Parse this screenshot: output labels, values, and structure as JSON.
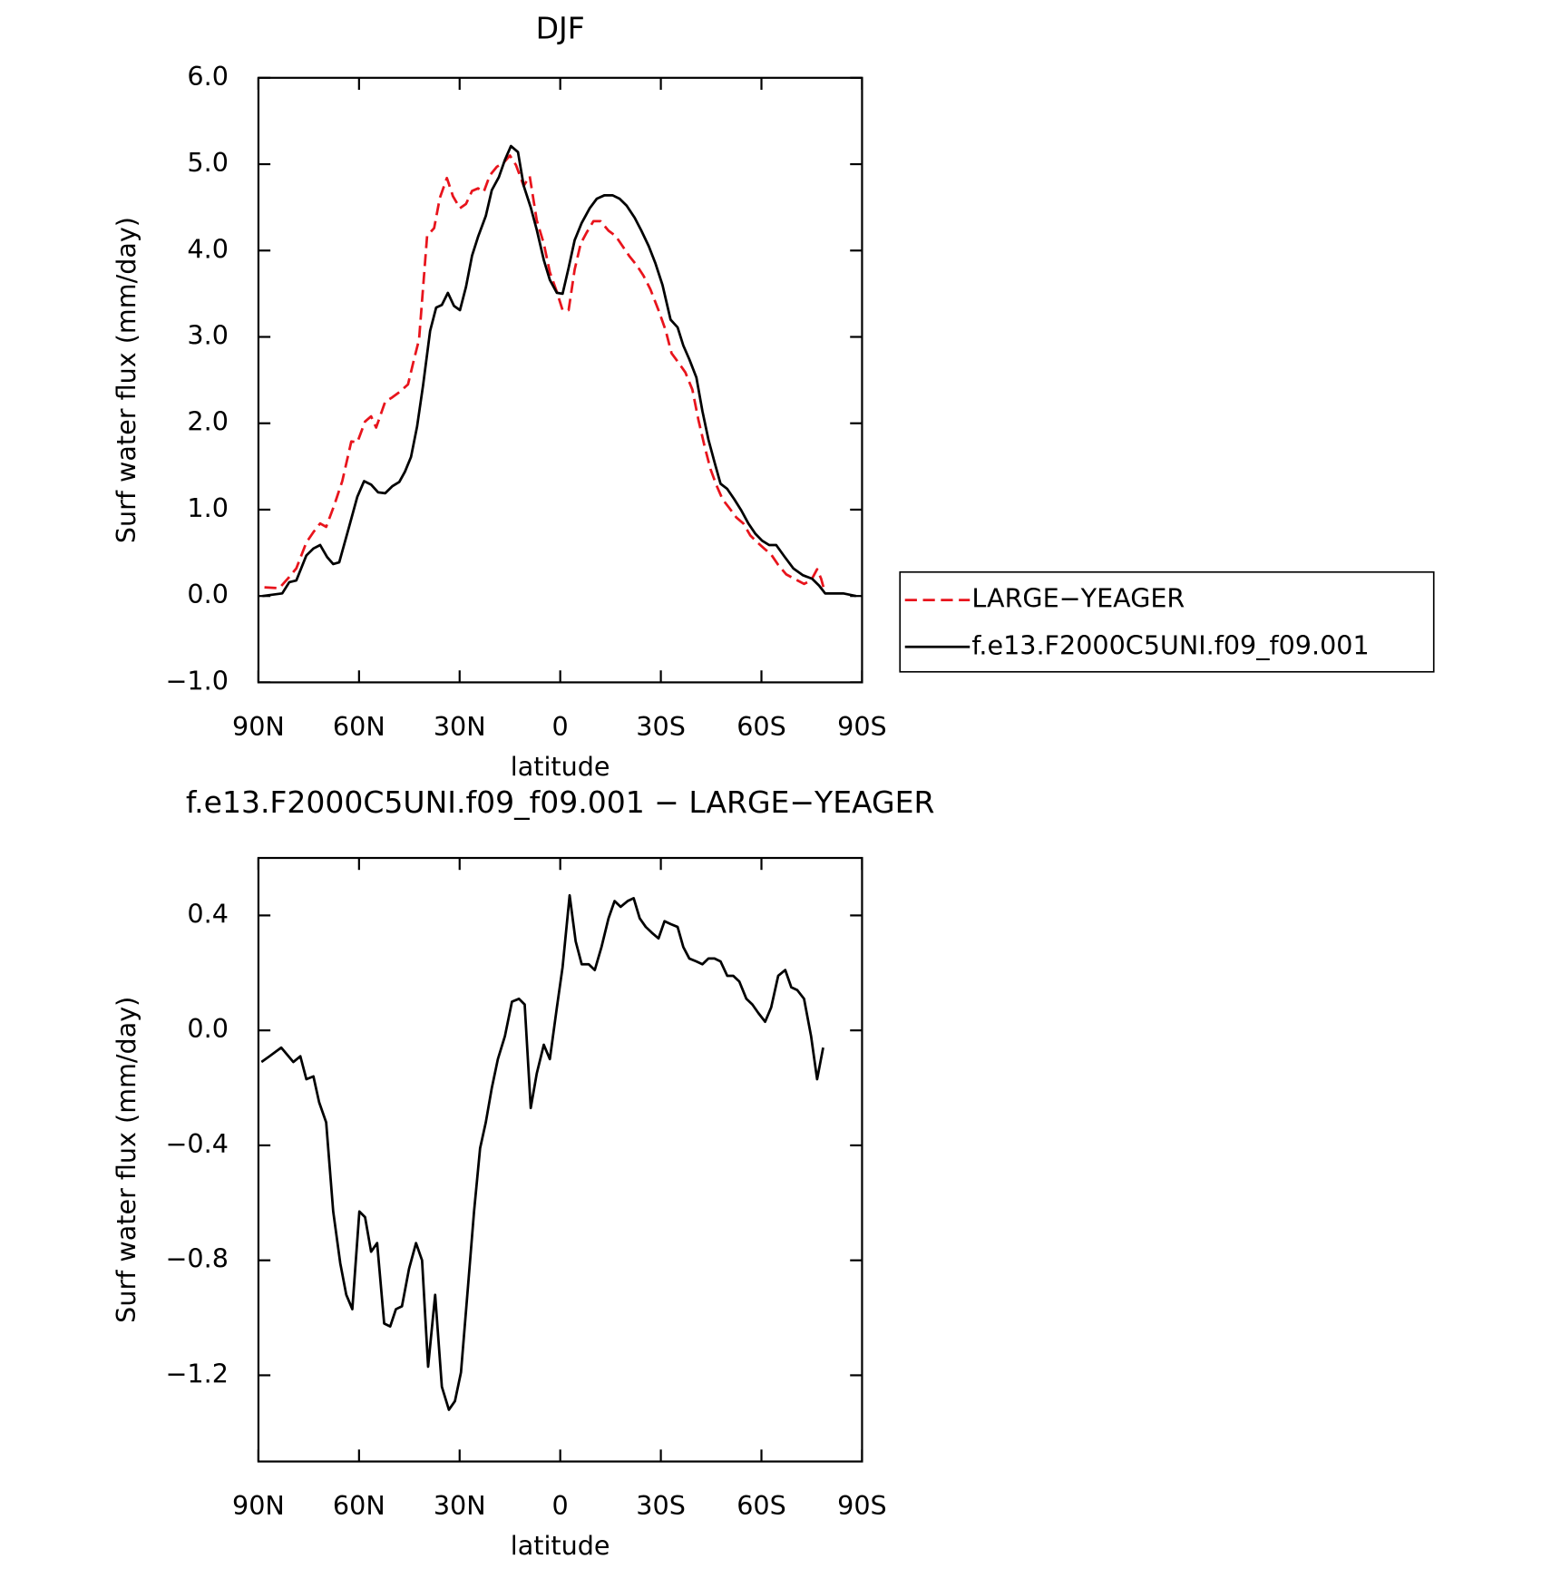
{
  "chart_data": [
    {
      "type": "line",
      "title": "DJF",
      "xlabel": "latitude",
      "ylabel": "Surf water flux (mm/day)",
      "xlim": [
        90,
        -90
      ],
      "xticks": [
        {
          "value": 90,
          "label": "90N"
        },
        {
          "value": 60,
          "label": "60N"
        },
        {
          "value": 30,
          "label": "30N"
        },
        0,
        {
          "value": -30,
          "label": "30S"
        },
        {
          "value": -60,
          "label": "60S"
        },
        {
          "value": -90,
          "label": "90S"
        }
      ],
      "ylim": [
        -1,
        6
      ],
      "yticks": [
        {
          "value": -1,
          "label": "−1.0"
        },
        {
          "value": 0,
          "label": "0.0"
        },
        {
          "value": 1,
          "label": "1.0"
        },
        {
          "value": 2,
          "label": "2.0"
        },
        {
          "value": 3,
          "label": "3.0"
        },
        {
          "value": 4,
          "label": "4.0"
        },
        {
          "value": 5,
          "label": "5.0"
        },
        {
          "value": 6,
          "label": "6.0"
        }
      ],
      "legend": "right",
      "series": [
        {
          "name": "LARGE−YEAGER",
          "color": "#e8141c",
          "style": "dashed",
          "x": [
            88.2,
            83.8,
            80.8,
            78.7,
            75.7,
            73.6,
            71.6,
            69.8,
            67.4,
            65.0,
            62.3,
            60.5,
            58.2,
            56.4,
            54.9,
            52.2,
            50.1,
            48.0,
            45.4,
            43.6,
            42.1,
            39.7,
            37.6,
            35.9,
            33.8,
            32.0,
            29.9,
            28.1,
            26.3,
            24.5,
            22.8,
            21.0,
            18.9,
            16.8,
            15.0,
            13.2,
            10.9,
            9.1,
            7.0,
            4.9,
            3.1,
            1.0,
            -0.7,
            -2.5,
            -4.3,
            -6.1,
            -7.9,
            -9.9,
            -12.0,
            -14.4,
            -16.5,
            -18.6,
            -20.7,
            -22.8,
            -24.8,
            -26.9,
            -29.3,
            -31.4,
            -33.2,
            -35.3,
            -37.3,
            -39.4,
            -41.2,
            -43.0,
            -44.8,
            -46.6,
            -48.4,
            -50.4,
            -52.5,
            -54.6,
            -56.7,
            -58.8,
            -60.8,
            -62.9,
            -65.0,
            -67.4,
            -69.8,
            -72.7,
            -74.8,
            -76.6,
            -77.8,
            -79.0
          ],
          "values": [
            0.1,
            0.09,
            0.22,
            0.32,
            0.62,
            0.74,
            0.84,
            0.8,
            1.05,
            1.33,
            1.79,
            1.78,
            2.02,
            2.08,
            1.95,
            2.25,
            2.3,
            2.36,
            2.45,
            2.74,
            2.97,
            4.17,
            4.26,
            4.61,
            4.84,
            4.63,
            4.49,
            4.54,
            4.69,
            4.72,
            4.68,
            4.87,
            4.97,
            5.02,
            5.1,
            4.99,
            4.75,
            4.86,
            4.35,
            4.08,
            3.75,
            3.52,
            3.31,
            3.31,
            3.78,
            4.08,
            4.21,
            4.34,
            4.34,
            4.23,
            4.17,
            4.05,
            3.93,
            3.83,
            3.71,
            3.55,
            3.31,
            3.08,
            2.81,
            2.7,
            2.59,
            2.39,
            2.04,
            1.74,
            1.47,
            1.28,
            1.12,
            1.02,
            0.91,
            0.84,
            0.7,
            0.62,
            0.55,
            0.48,
            0.36,
            0.25,
            0.2,
            0.14,
            0.18,
            0.31,
            0.2,
            0.03
          ]
        },
        {
          "name": "f.e13.F2000C5UNI.f09_f09.001",
          "color": "#000000",
          "style": "solid",
          "x": [
            88.8,
            82.9,
            80.8,
            78.7,
            75.7,
            73.6,
            71.6,
            69.5,
            67.7,
            65.9,
            62.9,
            60.5,
            58.5,
            56.4,
            54.3,
            52.2,
            50.1,
            48.0,
            46.3,
            44.5,
            42.7,
            40.9,
            38.8,
            37.0,
            35.3,
            33.5,
            31.7,
            29.9,
            28.1,
            26.3,
            24.5,
            22.2,
            20.4,
            18.3,
            16.5,
            14.7,
            12.6,
            10.9,
            8.8,
            7.0,
            4.9,
            3.1,
            1.0,
            -0.7,
            -2.5,
            -4.3,
            -6.4,
            -8.8,
            -10.9,
            -13.2,
            -15.6,
            -17.7,
            -19.8,
            -22.2,
            -24.2,
            -26.4,
            -28.4,
            -30.5,
            -32.9,
            -35.0,
            -36.7,
            -38.5,
            -40.6,
            -42.4,
            -44.2,
            -46.0,
            -47.8,
            -49.8,
            -51.9,
            -54.0,
            -56.1,
            -58.2,
            -60.2,
            -62.3,
            -64.4,
            -66.8,
            -69.5,
            -72.4,
            -75.1,
            -77.2,
            -79.0,
            -82.3,
            -84.4,
            -88.2
          ],
          "values": [
            0.0,
            0.03,
            0.16,
            0.18,
            0.47,
            0.55,
            0.59,
            0.45,
            0.37,
            0.39,
            0.81,
            1.15,
            1.33,
            1.29,
            1.2,
            1.19,
            1.27,
            1.32,
            1.44,
            1.61,
            1.96,
            2.44,
            3.07,
            3.34,
            3.37,
            3.51,
            3.36,
            3.31,
            3.58,
            3.94,
            4.16,
            4.4,
            4.7,
            4.85,
            5.05,
            5.21,
            5.14,
            4.75,
            4.5,
            4.24,
            3.89,
            3.66,
            3.51,
            3.5,
            3.8,
            4.12,
            4.32,
            4.49,
            4.6,
            4.64,
            4.64,
            4.6,
            4.52,
            4.38,
            4.23,
            4.05,
            3.85,
            3.6,
            3.2,
            3.11,
            2.9,
            2.74,
            2.53,
            2.14,
            1.81,
            1.55,
            1.3,
            1.24,
            1.12,
            0.99,
            0.84,
            0.72,
            0.64,
            0.59,
            0.59,
            0.46,
            0.32,
            0.24,
            0.2,
            0.12,
            0.03,
            0.03,
            0.03,
            0.0
          ]
        }
      ]
    },
    {
      "type": "line",
      "title": "f.e13.F2000C5UNI.f09_f09.001 − LARGE−YEAGER",
      "xlabel": "latitude",
      "ylabel": "Surf water flux (mm/day)",
      "xlim": [
        90,
        -90
      ],
      "xticks": [
        {
          "value": 90,
          "label": "90N"
        },
        {
          "value": 60,
          "label": "60N"
        },
        {
          "value": 30,
          "label": "30N"
        },
        0,
        {
          "value": -30,
          "label": "30S"
        },
        {
          "value": -60,
          "label": "60S"
        },
        {
          "value": -90,
          "label": "90S"
        }
      ],
      "ylim": [
        -1.5,
        0.6
      ],
      "yticks": [
        {
          "value": -1.2,
          "label": "−1.2"
        },
        {
          "value": -0.8,
          "label": "−0.8"
        },
        {
          "value": -0.4,
          "label": "−0.4"
        },
        {
          "value": 0,
          "label": "0.0"
        },
        0.4
      ],
      "series": [
        {
          "color": "#000000",
          "style": "solid",
          "x": [
            89.1,
            86.7,
            83.2,
            79.6,
            77.5,
            75.7,
            73.6,
            71.9,
            69.8,
            67.7,
            65.6,
            63.8,
            62.0,
            59.9,
            58.2,
            56.4,
            54.6,
            52.5,
            50.7,
            49.0,
            47.2,
            45.1,
            43.0,
            41.2,
            39.4,
            37.3,
            35.3,
            33.2,
            31.4,
            29.6,
            27.5,
            25.7,
            23.9,
            22.2,
            20.4,
            18.6,
            16.5,
            14.4,
            12.3,
            10.6,
            8.8,
            7.0,
            4.9,
            3.1,
            1.0,
            -0.7,
            -2.8,
            -4.6,
            -6.4,
            -8.5,
            -10.3,
            -12.3,
            -14.4,
            -16.2,
            -18.0,
            -20.1,
            -21.9,
            -23.7,
            -25.5,
            -27.3,
            -29.3,
            -31.1,
            -32.9,
            -35.0,
            -36.7,
            -38.5,
            -40.6,
            -42.4,
            -44.2,
            -46.0,
            -47.8,
            -49.8,
            -51.6,
            -53.4,
            -55.5,
            -57.3,
            -59.1,
            -61.1,
            -62.9,
            -65.0,
            -67.1,
            -68.9,
            -70.7,
            -72.7,
            -74.8,
            -76.6,
            -78.4
          ],
          "values": [
            -0.11,
            -0.09,
            -0.06,
            -0.11,
            -0.09,
            -0.17,
            -0.16,
            -0.25,
            -0.32,
            -0.63,
            -0.81,
            -0.92,
            -0.97,
            -0.63,
            -0.65,
            -0.77,
            -0.74,
            -1.02,
            -1.03,
            -0.97,
            -0.96,
            -0.83,
            -0.74,
            -0.8,
            -1.17,
            -0.92,
            -1.24,
            -1.32,
            -1.29,
            -1.19,
            -0.89,
            -0.63,
            -0.41,
            -0.32,
            -0.2,
            -0.1,
            -0.02,
            0.1,
            0.11,
            0.09,
            -0.27,
            -0.15,
            -0.05,
            -0.1,
            0.08,
            0.22,
            0.47,
            0.31,
            0.23,
            0.23,
            0.21,
            0.29,
            0.39,
            0.45,
            0.43,
            0.45,
            0.46,
            0.39,
            0.36,
            0.34,
            0.32,
            0.38,
            0.37,
            0.36,
            0.29,
            0.25,
            0.24,
            0.23,
            0.25,
            0.25,
            0.24,
            0.19,
            0.19,
            0.17,
            0.11,
            0.09,
            0.06,
            0.03,
            0.08,
            0.19,
            0.21,
            0.15,
            0.14,
            0.11,
            -0.02,
            -0.17,
            -0.06
          ]
        }
      ]
    }
  ]
}
